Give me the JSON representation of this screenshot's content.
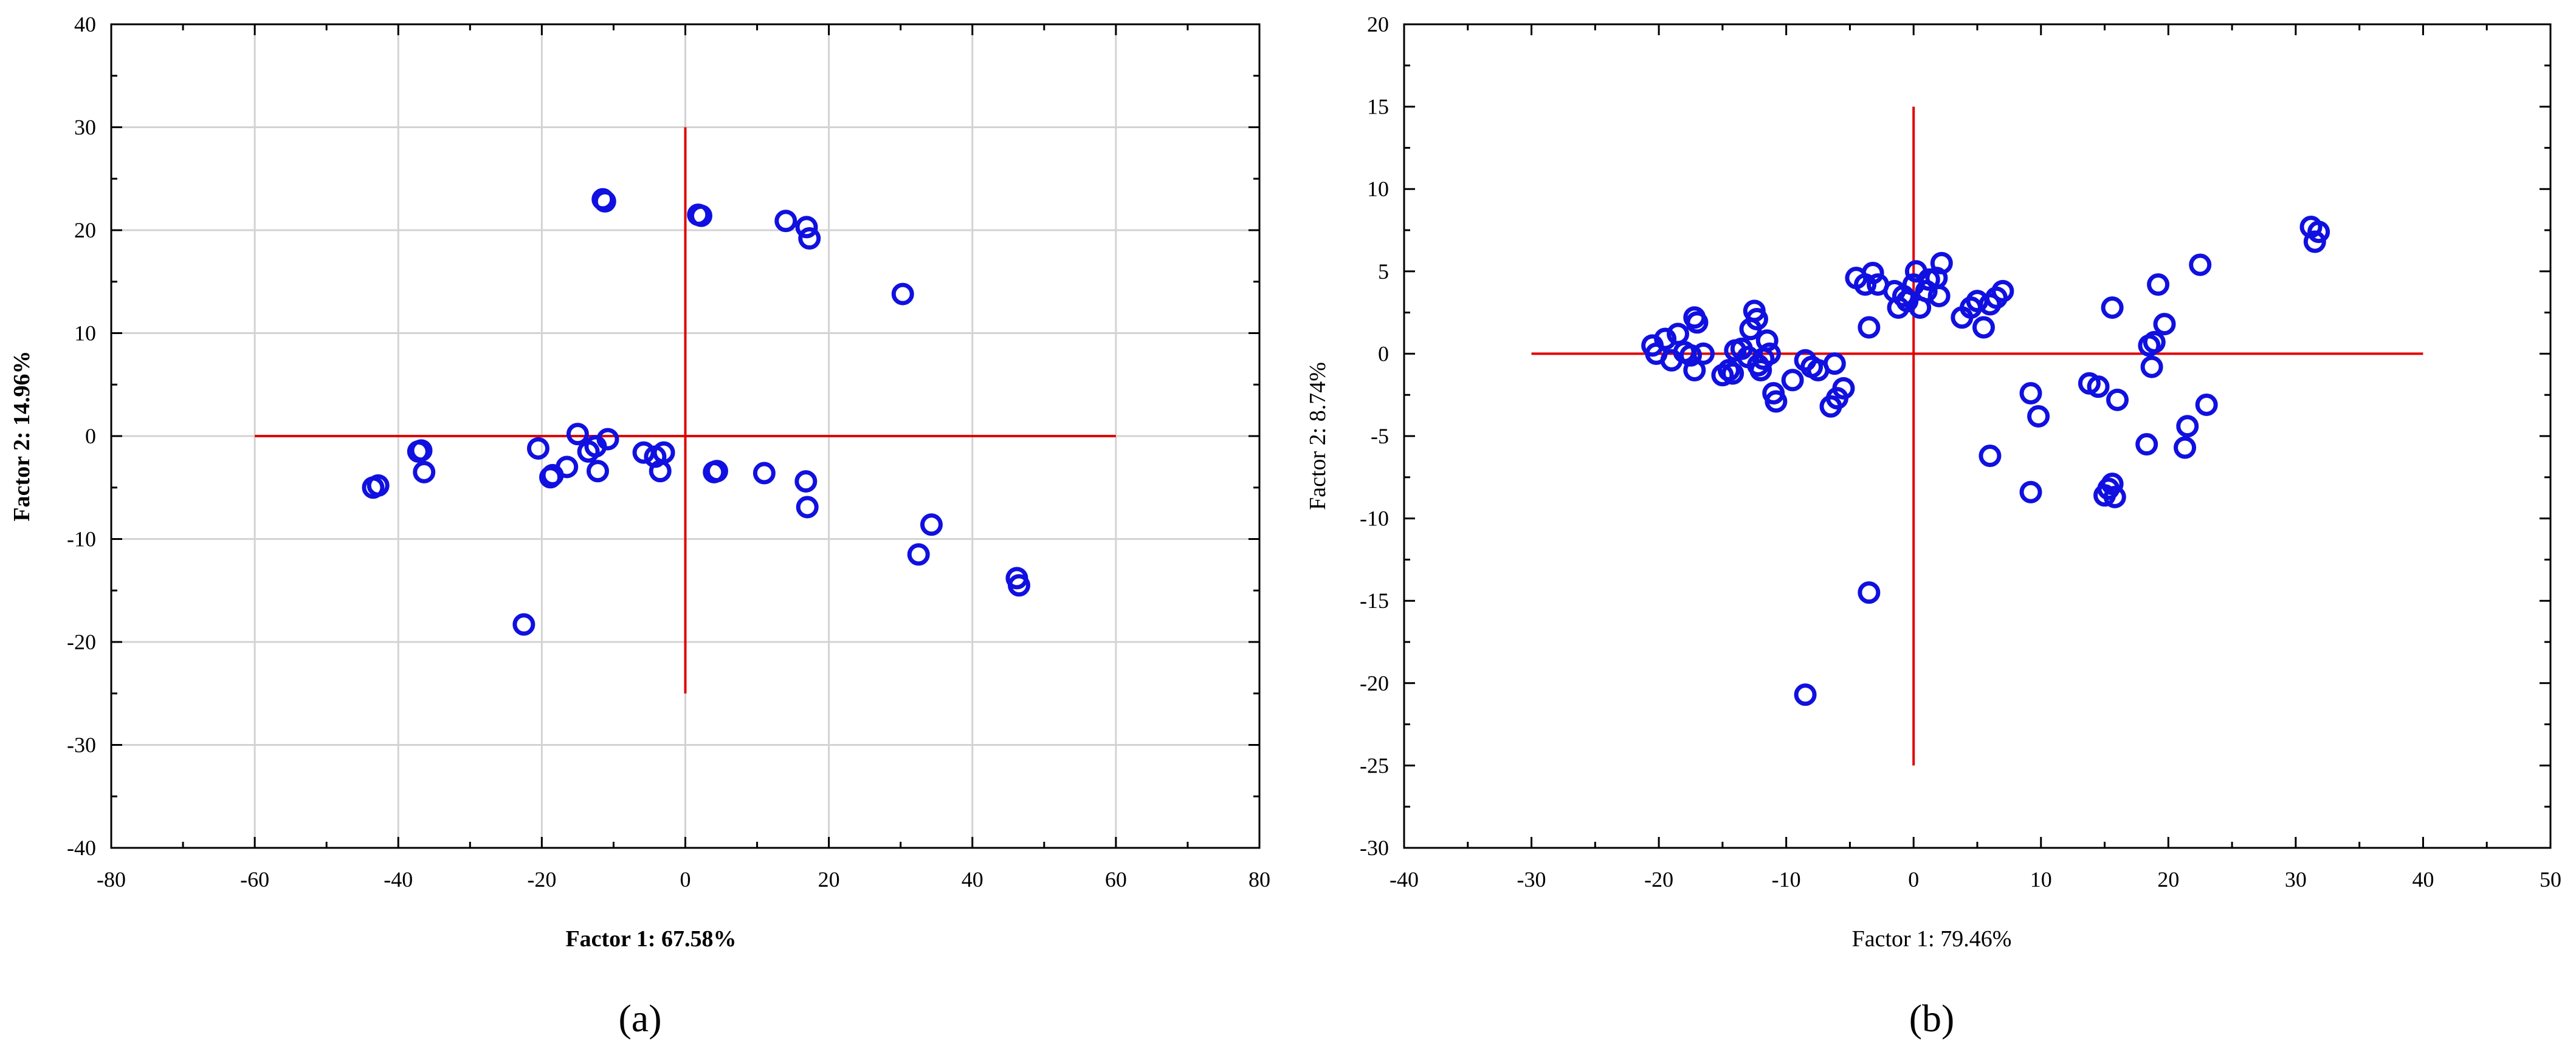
{
  "chart_data": [
    {
      "type": "scatter",
      "panel_label": "(a)",
      "xlabel": "Factor 1: 67.58%",
      "ylabel": "Factor 2: 14.96%",
      "xlabel_bold": true,
      "xlim": [
        -80,
        80
      ],
      "ylim": [
        -40,
        40
      ],
      "xticks": [
        -80,
        -60,
        -40,
        -20,
        0,
        20,
        40,
        60,
        80
      ],
      "yticks": [
        -40,
        -30,
        -20,
        -10,
        0,
        10,
        20,
        30,
        40
      ],
      "grid": true,
      "marker": "open-circle",
      "marker_color": "#1010e0",
      "reference_color": "#e00000",
      "reference_lines": {
        "horizontal": {
          "y": 0,
          "x": [
            -60,
            60
          ]
        },
        "vertical": {
          "x": 0,
          "y": [
            -25,
            30
          ]
        }
      },
      "points": [
        [
          -43.5,
          -5.0
        ],
        [
          -42.8,
          -4.8
        ],
        [
          -37.2,
          -1.5
        ],
        [
          -36.8,
          -1.4
        ],
        [
          -36.4,
          -3.5
        ],
        [
          -20.5,
          -1.2
        ],
        [
          -18.8,
          -4.0
        ],
        [
          -18.5,
          -3.8
        ],
        [
          -16.5,
          -3.0
        ],
        [
          -15.0,
          0.2
        ],
        [
          -13.5,
          -1.5
        ],
        [
          -12.5,
          -1.0
        ],
        [
          -12.2,
          -3.4
        ],
        [
          -11.5,
          23.0
        ],
        [
          -11.2,
          22.8
        ],
        [
          -10.8,
          -0.3
        ],
        [
          -5.8,
          -1.6
        ],
        [
          -4.2,
          -2.0
        ],
        [
          -3.5,
          -3.4
        ],
        [
          -3.0,
          -1.6
        ],
        [
          1.8,
          21.5
        ],
        [
          2.2,
          21.4
        ],
        [
          4.0,
          -3.5
        ],
        [
          4.4,
          -3.4
        ],
        [
          11.0,
          -3.6
        ],
        [
          14.0,
          20.9
        ],
        [
          16.8,
          -4.4
        ],
        [
          16.9,
          20.3
        ],
        [
          17.0,
          -6.9
        ],
        [
          17.3,
          19.2
        ],
        [
          30.3,
          13.8
        ],
        [
          32.5,
          -11.5
        ],
        [
          34.3,
          -8.6
        ],
        [
          46.2,
          -13.8
        ],
        [
          46.5,
          -14.5
        ],
        [
          -22.5,
          -18.3
        ]
      ]
    },
    {
      "type": "scatter",
      "panel_label": "(b)",
      "xlabel": "Factor 1: 79.46%",
      "ylabel": "Factor 2: 8.74%",
      "xlabel_bold": false,
      "xlim": [
        -40,
        50
      ],
      "ylim": [
        -30,
        20
      ],
      "xticks": [
        -40,
        -30,
        -20,
        -10,
        0,
        10,
        20,
        30,
        40,
        50
      ],
      "yticks": [
        -30,
        -25,
        -20,
        -15,
        -10,
        -5,
        0,
        5,
        10,
        15,
        20
      ],
      "grid": false,
      "marker": "open-circle",
      "marker_color": "#1010e0",
      "reference_color": "#e00000",
      "reference_lines": {
        "horizontal": {
          "y": 0,
          "x": [
            -30,
            40
          ]
        },
        "vertical": {
          "x": 0,
          "y": [
            -25,
            15
          ]
        }
      },
      "points": [
        [
          -20.5,
          0.5
        ],
        [
          -20.2,
          0.0
        ],
        [
          -19.5,
          0.9
        ],
        [
          -19.0,
          -0.4
        ],
        [
          -18.5,
          1.2
        ],
        [
          -18.0,
          0.1
        ],
        [
          -17.5,
          -0.1
        ],
        [
          -17.2,
          2.2
        ],
        [
          -17.0,
          1.9
        ],
        [
          -17.2,
          -1.0
        ],
        [
          -16.5,
          0.0
        ],
        [
          -15.0,
          -1.3
        ],
        [
          -14.5,
          -1.0
        ],
        [
          -14.2,
          -1.2
        ],
        [
          -14.0,
          0.2
        ],
        [
          -13.5,
          0.3
        ],
        [
          -13.0,
          -0.2
        ],
        [
          -12.8,
          1.5
        ],
        [
          -12.5,
          2.6
        ],
        [
          -12.3,
          2.1
        ],
        [
          -12.2,
          -0.7
        ],
        [
          -12.0,
          -1.0
        ],
        [
          -11.8,
          -0.3
        ],
        [
          -11.5,
          0.8
        ],
        [
          -11.3,
          0.0
        ],
        [
          -11.0,
          -2.4
        ],
        [
          -10.8,
          -2.9
        ],
        [
          -9.5,
          -1.6
        ],
        [
          -8.5,
          -0.4
        ],
        [
          -8.0,
          -0.8
        ],
        [
          -7.5,
          -1.0
        ],
        [
          -6.5,
          -3.2
        ],
        [
          -6.0,
          -2.7
        ],
        [
          -6.2,
          -0.6
        ],
        [
          -5.5,
          -2.1
        ],
        [
          -4.5,
          4.6
        ],
        [
          -3.8,
          4.2
        ],
        [
          -3.5,
          1.6
        ],
        [
          -3.2,
          4.9
        ],
        [
          -2.8,
          4.2
        ],
        [
          -1.5,
          3.8
        ],
        [
          -1.2,
          2.8
        ],
        [
          -0.8,
          3.5
        ],
        [
          -0.5,
          3.2
        ],
        [
          0.0,
          4.2
        ],
        [
          0.2,
          5.0
        ],
        [
          0.5,
          2.8
        ],
        [
          1.0,
          3.8
        ],
        [
          1.2,
          4.5
        ],
        [
          1.8,
          4.6
        ],
        [
          2.0,
          3.5
        ],
        [
          2.2,
          5.5
        ],
        [
          3.8,
          2.2
        ],
        [
          4.5,
          2.8
        ],
        [
          5.0,
          3.2
        ],
        [
          5.5,
          1.6
        ],
        [
          6.0,
          3.0
        ],
        [
          6.5,
          3.4
        ],
        [
          7.0,
          3.8
        ],
        [
          6.0,
          -6.2
        ],
        [
          9.2,
          -2.4
        ],
        [
          9.2,
          -8.4
        ],
        [
          9.8,
          -3.8
        ],
        [
          13.8,
          -1.8
        ],
        [
          14.5,
          -2.0
        ],
        [
          15.0,
          -8.6
        ],
        [
          15.3,
          -8.2
        ],
        [
          15.6,
          -7.9
        ],
        [
          15.8,
          -8.7
        ],
        [
          15.6,
          2.8
        ],
        [
          16.0,
          -2.8
        ],
        [
          18.3,
          -5.5
        ],
        [
          18.5,
          0.5
        ],
        [
          18.7,
          -0.8
        ],
        [
          18.9,
          0.7
        ],
        [
          19.2,
          4.2
        ],
        [
          19.7,
          1.8
        ],
        [
          21.3,
          -5.7
        ],
        [
          21.5,
          -4.4
        ],
        [
          22.5,
          5.4
        ],
        [
          23.0,
          -3.1
        ],
        [
          31.2,
          7.7
        ],
        [
          31.5,
          6.8
        ],
        [
          31.8,
          7.4
        ],
        [
          -3.5,
          -14.5
        ],
        [
          -8.5,
          -20.7
        ]
      ]
    }
  ]
}
